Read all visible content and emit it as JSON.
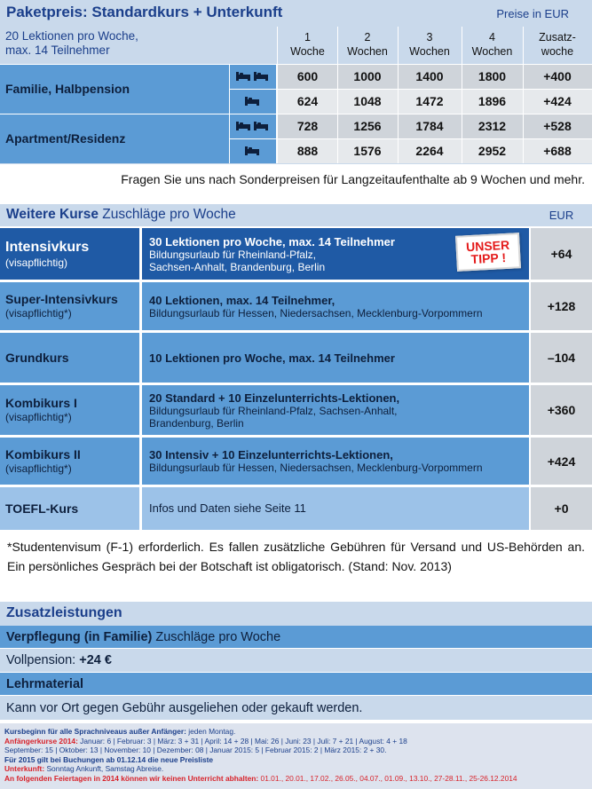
{
  "paket": {
    "title": "Paketpreis: Standardkurs + Unterkunft",
    "currency": "Preise in EUR",
    "subtitle_line1": "20 Lektionen pro Woche,",
    "subtitle_line2": "max. 14 Teilnehmer",
    "columns": [
      {
        "top": "1",
        "bottom": "Woche"
      },
      {
        "top": "2",
        "bottom": "Wochen"
      },
      {
        "top": "3",
        "bottom": "Wochen"
      },
      {
        "top": "4",
        "bottom": "Wochen"
      },
      {
        "top": "Zusatz-",
        "bottom": "woche"
      }
    ],
    "groups": [
      {
        "label": "Familie, Halbpension",
        "rows": [
          {
            "icon": "double-room-icon",
            "values": [
              "600",
              "1000",
              "1400",
              "1800",
              "+400"
            ]
          },
          {
            "icon": "single-room-icon",
            "values": [
              "624",
              "1048",
              "1472",
              "1896",
              "+424"
            ]
          }
        ]
      },
      {
        "label": "Apartment/Residenz",
        "rows": [
          {
            "icon": "double-room-icon",
            "values": [
              "728",
              "1256",
              "1784",
              "2312",
              "+528"
            ]
          },
          {
            "icon": "single-room-icon",
            "values": [
              "888",
              "1576",
              "2264",
              "2952",
              "+688"
            ]
          }
        ]
      }
    ],
    "note": "Fragen Sie uns nach Sonderpreisen für Langzeitaufenthalte ab 9 Wochen und mehr."
  },
  "weitere": {
    "title_bold": "Weitere Kurse",
    "title_rest": " Zuschläge pro Woche",
    "currency": "EUR",
    "badge_line1": "UNSER",
    "badge_line2": "TIPP !",
    "courses": [
      {
        "name": "Intensivkurs",
        "sub": "(visapflichtig)",
        "d1": "30 Lektionen pro Woche, max. 14 Teilnehmer",
        "d2": "Bildungsurlaub für Rheinland-Pfalz,",
        "d3": "Sachsen-Anhalt, Brandenburg, Berlin",
        "price": "+64"
      },
      {
        "name": "Super-Intensivkurs",
        "sub": "(visapflichtig*)",
        "d1": "40 Lektionen, max. 14 Teilnehmer,",
        "d2": "Bildungsurlaub für Hessen, Niedersachsen, Mecklenburg-Vorpommern",
        "d3": "",
        "price": "+128"
      },
      {
        "name": "Grundkurs",
        "sub": "",
        "d1": "10 Lektionen pro Woche, max. 14 Teilnehmer",
        "d2": "",
        "d3": "",
        "price": "–104"
      },
      {
        "name": "Kombikurs I",
        "sub": "(visapflichtig*)",
        "d1": "20 Standard + 10 Einzelunterrichts-Lektionen,",
        "d2": "Bildungsurlaub für Rheinland-Pfalz, Sachsen-Anhalt,",
        "d3": "Brandenburg, Berlin",
        "price": "+360"
      },
      {
        "name": "Kombikurs II",
        "sub": "(visapflichtig*)",
        "d1": "30 Intensiv + 10 Einzelunterrichts-Lektionen,",
        "d2": "Bildungsurlaub für Hessen, Niedersachsen, Mecklenburg-Vorpommern",
        "d3": "",
        "price": "+424"
      },
      {
        "name": "TOEFL-Kurs",
        "sub": "",
        "d1": "Infos und Daten siehe Seite 11",
        "d2": "",
        "d3": "",
        "price": "+0"
      }
    ],
    "footnote": "*Studentenvisum (F-1) erforderlich. Es fallen zusätzliche Gebühren für Versand und US-Behörden an.  Ein persönliches Gespräch bei der Botschaft ist obligatorisch. (Stand: Nov. 2013)"
  },
  "zusatz": {
    "title": "Zusatzleistungen",
    "verpflegung_bold": "Verpflegung (in Familie)",
    "verpflegung_rest": " Zuschläge pro Woche",
    "vollpension_label": "Vollpension: ",
    "vollpension_value": "+24 €",
    "lehrmaterial": "Lehrmaterial",
    "lehrmaterial_text": "Kann vor Ort gegen Gebühr ausgeliehen oder gekauft werden."
  },
  "footer": {
    "line1_label": "Kursbeginn für alle Sprachniveaus außer Anfänger:",
    "line1_text": " jeden Montag.",
    "line2_label": "Anfängerkurse 2014:",
    "line2_text": " Januar: 6 | Februar: 3 | März: 3 + 31 | April: 14 + 28 | Mai: 26 | Juni: 23 | Juli: 7 + 21 | August: 4 + 18",
    "line3_text": "September: 15 | Oktober: 13 | November: 10 | Dezember: 08 | Januar 2015: 5 | Februar 2015: 2 | März 2015: 2 + 30.",
    "line4_text": "Für 2015 gilt bei Buchungen ab 01.12.14 die neue Preisliste",
    "line5_label": "Unterkunft:",
    "line5_text": " Sonntag Ankunft, Samstag Abreise.",
    "line6_label": "An folgenden Feiertagen in 2014 können wir keinen Unterricht abhalten:",
    "line6_text": " 01.01., 20.01., 17.02., 26.05., 04.07., 01.09., 13.10., 27-28.11., 25-26.12.2014"
  },
  "colors": {
    "header_bg": "#c9d9eb",
    "title_blue": "#1b3f8b",
    "cell_blue": "#5b9bd5",
    "highlight_blue": "#1f5aa5",
    "price_grey": "#cfd4da",
    "badge_red": "#e41b1b"
  }
}
